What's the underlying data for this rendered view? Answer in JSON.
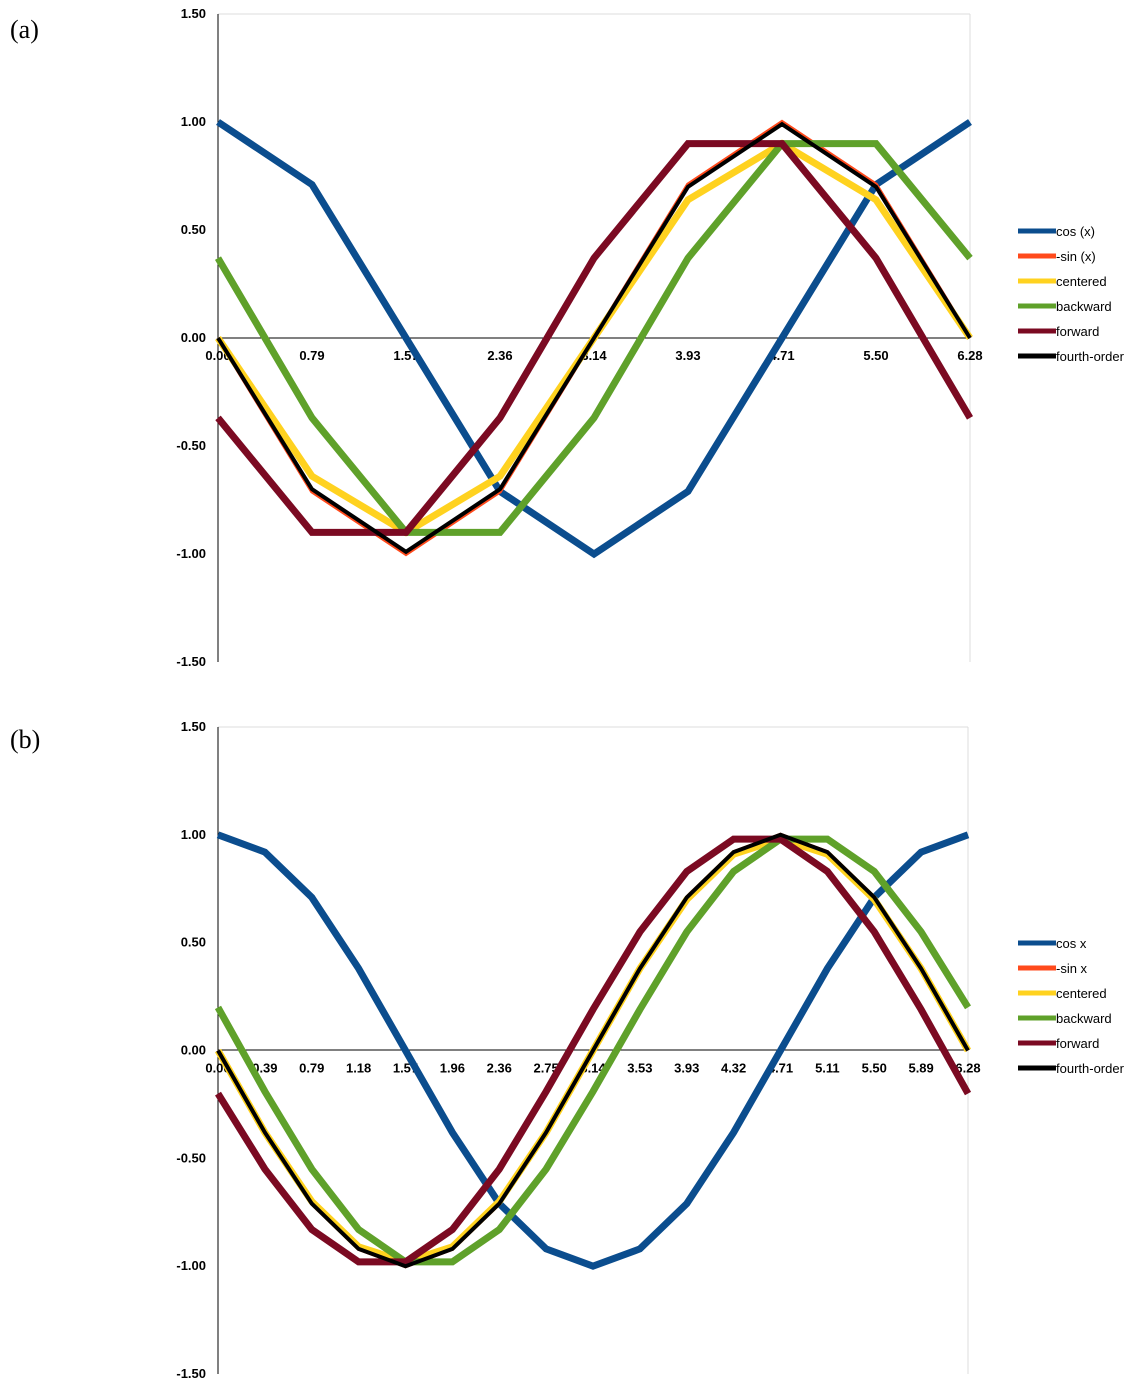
{
  "colors": {
    "cos": "#0b4d8e",
    "neg_sin": "#ff4a1c",
    "centered": "#ffd21f",
    "backward": "#5fa12a",
    "forward": "#7b0a22",
    "fourth_order": "#000000"
  },
  "chart_data": [
    {
      "panel_label": "(a)",
      "type": "line",
      "grid": false,
      "legend_position": "right",
      "ylim": [
        -1.5,
        1.5
      ],
      "y_ticks": [
        "1.50",
        "1.00",
        "0.50",
        "0.00",
        "-0.50",
        "-1.00",
        "-1.50"
      ],
      "x_ticks": [
        "0.00",
        "0.79",
        "1.57",
        "2.36",
        "3.14",
        "3.93",
        "4.71",
        "5.50",
        "6.28"
      ],
      "x": [
        0.0,
        0.79,
        1.57,
        2.36,
        3.14,
        3.93,
        4.71,
        5.5,
        6.28
      ],
      "series": [
        {
          "name": "cos (x)",
          "color_key": "cos",
          "values": [
            1.0,
            0.71,
            0.0,
            -0.71,
            -1.0,
            -0.71,
            0.0,
            0.71,
            1.0
          ]
        },
        {
          "name": "-sin (x)",
          "color_key": "neg_sin",
          "values": [
            0.0,
            -0.71,
            -1.0,
            -0.71,
            0.0,
            0.71,
            1.0,
            0.71,
            0.0
          ]
        },
        {
          "name": "centered",
          "color_key": "centered",
          "values": [
            0.0,
            -0.64,
            -0.9,
            -0.64,
            0.0,
            0.64,
            0.9,
            0.64,
            0.0
          ]
        },
        {
          "name": "backward",
          "color_key": "backward",
          "values": [
            0.37,
            -0.37,
            -0.9,
            -0.9,
            -0.37,
            0.37,
            0.9,
            0.9,
            0.37
          ]
        },
        {
          "name": "forward",
          "color_key": "forward",
          "values": [
            -0.37,
            -0.9,
            -0.9,
            -0.37,
            0.37,
            0.9,
            0.9,
            0.37,
            -0.37
          ]
        },
        {
          "name": "fourth-order",
          "color_key": "fourth_order",
          "values": [
            0.0,
            -0.7,
            -0.99,
            -0.7,
            0.0,
            0.7,
            0.99,
            0.7,
            0.0
          ]
        }
      ]
    },
    {
      "panel_label": "(b)",
      "type": "line",
      "grid": false,
      "legend_position": "right",
      "ylim": [
        -1.5,
        1.5
      ],
      "y_ticks": [
        "1.50",
        "1.00",
        "0.50",
        "0.00",
        "-0.50",
        "-1.00",
        "-1.50"
      ],
      "x_ticks": [
        "0.00",
        "0.39",
        "0.79",
        "1.18",
        "1.57",
        "1.96",
        "2.36",
        "2.75",
        "3.14",
        "3.53",
        "3.93",
        "4.32",
        "4.71",
        "5.11",
        "5.50",
        "5.89",
        "6.28"
      ],
      "x": [
        0.0,
        0.39,
        0.79,
        1.18,
        1.57,
        1.96,
        2.36,
        2.75,
        3.14,
        3.53,
        3.93,
        4.32,
        4.71,
        5.11,
        5.5,
        5.89,
        6.28
      ],
      "series": [
        {
          "name": "cos x",
          "color_key": "cos",
          "values": [
            1.0,
            0.92,
            0.71,
            0.38,
            0.0,
            -0.38,
            -0.71,
            -0.92,
            -1.0,
            -0.92,
            -0.71,
            -0.38,
            0.0,
            0.38,
            0.71,
            0.92,
            1.0
          ]
        },
        {
          "name": "-sin x",
          "color_key": "neg_sin",
          "values": [
            0.0,
            -0.38,
            -0.71,
            -0.92,
            -1.0,
            -0.92,
            -0.71,
            -0.38,
            0.0,
            0.38,
            0.71,
            0.92,
            1.0,
            0.92,
            0.71,
            0.38,
            0.0
          ]
        },
        {
          "name": "centered",
          "color_key": "centered",
          "values": [
            0.0,
            -0.38,
            -0.7,
            -0.91,
            -0.98,
            -0.91,
            -0.7,
            -0.38,
            0.0,
            0.38,
            0.7,
            0.91,
            0.98,
            0.91,
            0.7,
            0.38,
            0.0
          ]
        },
        {
          "name": "backward",
          "color_key": "backward",
          "values": [
            0.2,
            -0.19,
            -0.55,
            -0.83,
            -0.98,
            -0.98,
            -0.83,
            -0.55,
            -0.19,
            0.19,
            0.55,
            0.83,
            0.98,
            0.98,
            0.83,
            0.55,
            0.2
          ]
        },
        {
          "name": "forward",
          "color_key": "forward",
          "values": [
            -0.2,
            -0.55,
            -0.83,
            -0.98,
            -0.98,
            -0.83,
            -0.55,
            -0.19,
            0.19,
            0.55,
            0.83,
            0.98,
            0.98,
            0.83,
            0.55,
            0.19,
            -0.2
          ]
        },
        {
          "name": "fourth-order",
          "color_key": "fourth_order",
          "values": [
            0.0,
            -0.38,
            -0.71,
            -0.92,
            -1.0,
            -0.92,
            -0.71,
            -0.38,
            0.0,
            0.38,
            0.71,
            0.92,
            1.0,
            0.92,
            0.71,
            0.38,
            0.0
          ]
        }
      ]
    }
  ]
}
